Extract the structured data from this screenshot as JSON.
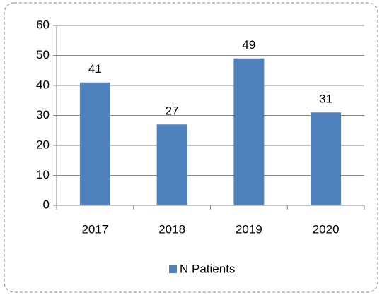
{
  "chart_data": {
    "type": "bar",
    "categories": [
      "2017",
      "2018",
      "2019",
      "2020"
    ],
    "series": [
      {
        "name": "N Patients",
        "color": "#4f81bd",
        "values": [
          41,
          27,
          49,
          31
        ]
      }
    ],
    "ylim": [
      0,
      60
    ],
    "yticks": [
      0,
      10,
      20,
      30,
      40,
      50,
      60
    ],
    "grid": true,
    "legend": "bottom",
    "data_labels": true
  }
}
